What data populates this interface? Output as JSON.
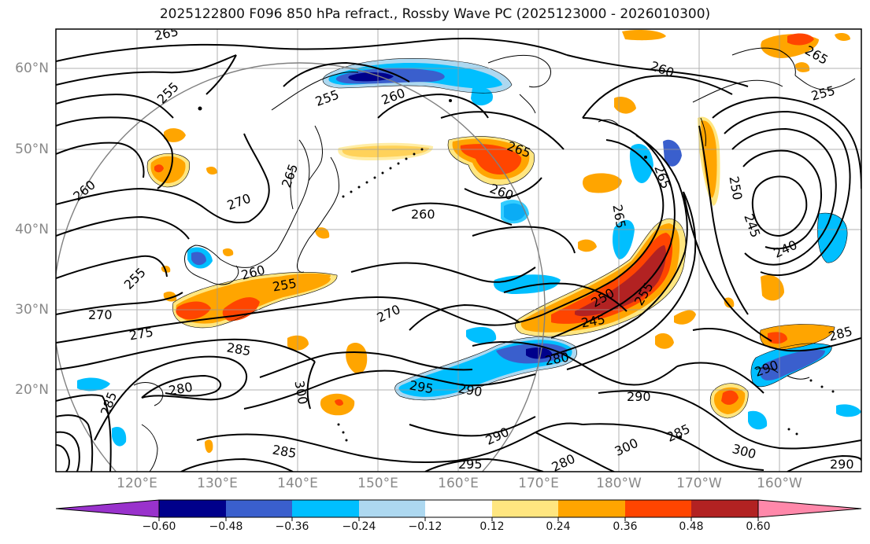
{
  "title": "2025122800 F096 850 hPa refract., Rossby Wave PC (2025123000 - 2026010300)",
  "axes": {
    "lat_labels": [
      "60°N",
      "50°N",
      "40°N",
      "30°N",
      "20°N"
    ],
    "lat_values": [
      60,
      50,
      40,
      30,
      20
    ],
    "lon_labels": [
      "120°E",
      "130°E",
      "140°E",
      "150°E",
      "160°E",
      "170°E",
      "180°W",
      "170°W",
      "160°W"
    ],
    "lon_values": [
      120,
      130,
      140,
      150,
      160,
      170,
      180,
      190,
      200
    ]
  },
  "colorbar": {
    "tick_labels": [
      "−0.60",
      "−0.48",
      "−0.36",
      "−0.24",
      "−0.12",
      "0.12",
      "0.24",
      "0.36",
      "0.48",
      "0.60"
    ],
    "colors": [
      "#9932cc",
      "#00008b",
      "#3a5fcd",
      "#00bfff",
      "#add8f0",
      "#ffffff",
      "#ffe680",
      "#ffa500",
      "#ff4500",
      "#b22222",
      "#ff88aa"
    ]
  },
  "contour_labels": [
    "265",
    "255",
    "260",
    "255",
    "260",
    "265",
    "260",
    "255",
    "265",
    "260",
    "270",
    "265",
    "260",
    "250",
    "245",
    "240",
    "265",
    "255",
    "260",
    "255",
    "265",
    "270",
    "275",
    "285",
    "270",
    "250",
    "245",
    "255",
    "280",
    "285",
    "290",
    "295",
    "290",
    "300",
    "280",
    "290",
    "285",
    "300",
    "285",
    "290",
    "295",
    "285",
    "290",
    "280",
    "300"
  ],
  "fill_colors": {
    "light_blue": "#add8f0",
    "sky_blue": "#00bfff",
    "mid_blue": "#3a5fcd",
    "dark_blue": "#00008b",
    "light_yellow": "#ffe680",
    "orange": "#ffa500",
    "red_orange": "#ff4500",
    "dark_red": "#b22222"
  }
}
